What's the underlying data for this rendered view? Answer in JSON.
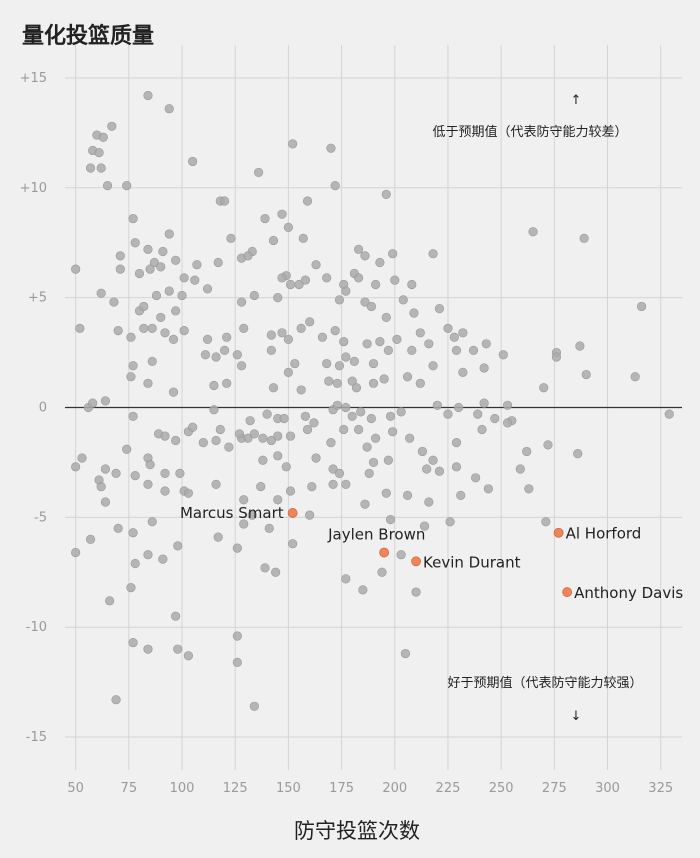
{
  "chart_data": {
    "type": "scatter",
    "title": "量化投篮质量",
    "xlabel": "防守投篮次数",
    "ylabel": "",
    "xlim": [
      45,
      335
    ],
    "ylim": [
      -16.5,
      16.5
    ],
    "x_ticks": [
      50,
      75,
      100,
      125,
      150,
      175,
      200,
      225,
      250,
      275,
      300,
      325
    ],
    "y_ticks": [
      15,
      10,
      5,
      0,
      -5,
      -10,
      -15
    ],
    "y_tick_labels": [
      "+15",
      "+10",
      "+5",
      "0",
      "-5",
      "-10",
      "-15"
    ],
    "grid": true,
    "annotations": {
      "above": "低于预期值（代表防守能力较差）",
      "below": "好于预期值（代表防守能力较强）"
    },
    "colors": {
      "point": "#aaaaaa",
      "highlight": "#f0855a",
      "zero_line": "#333333"
    },
    "highlighted": [
      {
        "name": "Marcus Smart",
        "x": 152,
        "y": -4.8,
        "label_side": "left"
      },
      {
        "name": "Jaylen Brown",
        "x": 195,
        "y": -6.6,
        "label_side": "above"
      },
      {
        "name": "Kevin Durant",
        "x": 210,
        "y": -7.0,
        "label_side": "right"
      },
      {
        "name": "Al Horford",
        "x": 277,
        "y": -5.7,
        "label_side": "right"
      },
      {
        "name": "Anthony Davis",
        "x": 281,
        "y": -8.4,
        "label_side": "right"
      }
    ],
    "points": [
      [
        84,
        14.2
      ],
      [
        94,
        13.6
      ],
      [
        67,
        12.8
      ],
      [
        60,
        12.4
      ],
      [
        63,
        12.3
      ],
      [
        152,
        12.0
      ],
      [
        170,
        11.8
      ],
      [
        58,
        11.7
      ],
      [
        61,
        11.6
      ],
      [
        57,
        10.9
      ],
      [
        62,
        10.9
      ],
      [
        105,
        11.2
      ],
      [
        136,
        10.7
      ],
      [
        65,
        10.1
      ],
      [
        74,
        10.1
      ],
      [
        172,
        10.1
      ],
      [
        196,
        9.7
      ],
      [
        118,
        9.4
      ],
      [
        120,
        9.4
      ],
      [
        159,
        9.4
      ],
      [
        77,
        8.6
      ],
      [
        139,
        8.6
      ],
      [
        147,
        8.8
      ],
      [
        150,
        8.2
      ],
      [
        94,
        7.9
      ],
      [
        123,
        7.7
      ],
      [
        157,
        7.7
      ],
      [
        265,
        8.0
      ],
      [
        289,
        7.7
      ],
      [
        78,
        7.5
      ],
      [
        84,
        7.2
      ],
      [
        91,
        7.1
      ],
      [
        71,
        6.9
      ],
      [
        87,
        6.6
      ],
      [
        97,
        6.7
      ],
      [
        107,
        6.5
      ],
      [
        128,
        6.8
      ],
      [
        133,
        7.1
      ],
      [
        149,
        6.0
      ],
      [
        143,
        7.6
      ],
      [
        183,
        7.2
      ],
      [
        186,
        6.9
      ],
      [
        193,
        6.6
      ],
      [
        199,
        7.0
      ],
      [
        218,
        7.0
      ],
      [
        50,
        6.3
      ],
      [
        71,
        6.3
      ],
      [
        85,
        6.3
      ],
      [
        90,
        6.4
      ],
      [
        117,
        6.6
      ],
      [
        131,
        6.9
      ],
      [
        163,
        6.5
      ],
      [
        80,
        6.1
      ],
      [
        112,
        5.4
      ],
      [
        101,
        5.9
      ],
      [
        106,
        5.8
      ],
      [
        147,
        5.9
      ],
      [
        151,
        5.6
      ],
      [
        155,
        5.6
      ],
      [
        158,
        5.8
      ],
      [
        168,
        5.9
      ],
      [
        181,
        6.1
      ],
      [
        183,
        5.9
      ],
      [
        191,
        5.6
      ],
      [
        176,
        5.6
      ],
      [
        200,
        5.8
      ],
      [
        208,
        5.6
      ],
      [
        62,
        5.2
      ],
      [
        68,
        4.8
      ],
      [
        80,
        4.4
      ],
      [
        88,
        5.1
      ],
      [
        94,
        5.3
      ],
      [
        82,
        4.6
      ],
      [
        90,
        4.1
      ],
      [
        97,
        4.4
      ],
      [
        100,
        5.1
      ],
      [
        128,
        4.8
      ],
      [
        134,
        5.1
      ],
      [
        145,
        5.0
      ],
      [
        174,
        4.9
      ],
      [
        177,
        5.3
      ],
      [
        186,
        4.8
      ],
      [
        189,
        4.6
      ],
      [
        196,
        4.1
      ],
      [
        204,
        4.9
      ],
      [
        209,
        4.3
      ],
      [
        221,
        4.5
      ],
      [
        316,
        4.6
      ],
      [
        52,
        3.6
      ],
      [
        70,
        3.5
      ],
      [
        76,
        3.2
      ],
      [
        82,
        3.6
      ],
      [
        86,
        3.6
      ],
      [
        92,
        3.4
      ],
      [
        96,
        3.1
      ],
      [
        101,
        3.5
      ],
      [
        112,
        3.1
      ],
      [
        121,
        3.2
      ],
      [
        129,
        3.6
      ],
      [
        142,
        3.3
      ],
      [
        147,
        3.4
      ],
      [
        150,
        3.1
      ],
      [
        156,
        3.6
      ],
      [
        160,
        3.9
      ],
      [
        166,
        3.2
      ],
      [
        172,
        3.5
      ],
      [
        176,
        3.0
      ],
      [
        187,
        2.9
      ],
      [
        193,
        3.0
      ],
      [
        201,
        3.1
      ],
      [
        212,
        3.4
      ],
      [
        225,
        3.6
      ],
      [
        228,
        3.2
      ],
      [
        232,
        3.4
      ],
      [
        243,
        2.9
      ],
      [
        120,
        2.6
      ],
      [
        126,
        2.4
      ],
      [
        142,
        2.6
      ],
      [
        153,
        2.0
      ],
      [
        177,
        2.3
      ],
      [
        181,
        2.1
      ],
      [
        190,
        2.0
      ],
      [
        197,
        2.6
      ],
      [
        208,
        2.6
      ],
      [
        216,
        2.9
      ],
      [
        229,
        2.6
      ],
      [
        237,
        2.6
      ],
      [
        77,
        1.9
      ],
      [
        86,
        2.1
      ],
      [
        111,
        2.4
      ],
      [
        116,
        2.3
      ],
      [
        128,
        1.9
      ],
      [
        150,
        1.6
      ],
      [
        168,
        2.0
      ],
      [
        174,
        1.9
      ],
      [
        180,
        1.2
      ],
      [
        190,
        1.1
      ],
      [
        218,
        1.9
      ],
      [
        232,
        1.6
      ],
      [
        242,
        1.8
      ],
      [
        251,
        2.4
      ],
      [
        276,
        2.5
      ],
      [
        276,
        2.3
      ],
      [
        287,
        2.8
      ],
      [
        313,
        1.4
      ],
      [
        290,
        1.5
      ],
      [
        76,
        1.4
      ],
      [
        84,
        1.1
      ],
      [
        96,
        0.7
      ],
      [
        115,
        1.0
      ],
      [
        121,
        1.1
      ],
      [
        143,
        0.9
      ],
      [
        156,
        0.8
      ],
      [
        169,
        1.2
      ],
      [
        173,
        1.1
      ],
      [
        182,
        0.9
      ],
      [
        195,
        1.3
      ],
      [
        206,
        1.4
      ],
      [
        212,
        1.1
      ],
      [
        56,
        0.0
      ],
      [
        58,
        0.2
      ],
      [
        64,
        0.3
      ],
      [
        77,
        -0.4
      ],
      [
        115,
        -0.1
      ],
      [
        132,
        -0.6
      ],
      [
        140,
        -0.3
      ],
      [
        145,
        -0.5
      ],
      [
        148,
        -0.5
      ],
      [
        158,
        -0.4
      ],
      [
        162,
        -0.7
      ],
      [
        171,
        -0.1
      ],
      [
        173,
        0.1
      ],
      [
        177,
        0.0
      ],
      [
        180,
        -0.4
      ],
      [
        184,
        -0.2
      ],
      [
        189,
        -0.5
      ],
      [
        198,
        -0.4
      ],
      [
        203,
        -0.2
      ],
      [
        220,
        0.1
      ],
      [
        225,
        -0.3
      ],
      [
        230,
        0.0
      ],
      [
        239,
        -0.3
      ],
      [
        242,
        0.2
      ],
      [
        247,
        -0.5
      ],
      [
        253,
        0.1
      ],
      [
        255,
        -0.6
      ],
      [
        270,
        0.9
      ],
      [
        329,
        -0.3
      ],
      [
        53,
        -2.3
      ],
      [
        50,
        -2.7
      ],
      [
        61,
        -3.3
      ],
      [
        69,
        -3.0
      ],
      [
        74,
        -1.9
      ],
      [
        64,
        -2.8
      ],
      [
        78,
        -3.1
      ],
      [
        84,
        -2.3
      ],
      [
        85,
        -2.6
      ],
      [
        89,
        -1.2
      ],
      [
        92,
        -1.3
      ],
      [
        97,
        -1.5
      ],
      [
        103,
        -1.1
      ],
      [
        105,
        -0.9
      ],
      [
        118,
        -1.0
      ],
      [
        116,
        -1.5
      ],
      [
        128,
        -1.4
      ],
      [
        131,
        -1.4
      ],
      [
        134,
        -1.2
      ],
      [
        138,
        -1.4
      ],
      [
        142,
        -1.5
      ],
      [
        145,
        -1.3
      ],
      [
        151,
        -1.3
      ],
      [
        159,
        -1.0
      ],
      [
        170,
        -1.6
      ],
      [
        176,
        -1.0
      ],
      [
        183,
        -1.0
      ],
      [
        187,
        -1.8
      ],
      [
        191,
        -1.4
      ],
      [
        199,
        -1.1
      ],
      [
        207,
        -1.4
      ],
      [
        213,
        -2.0
      ],
      [
        218,
        -2.4
      ],
      [
        229,
        -1.6
      ],
      [
        241,
        -1.0
      ],
      [
        253,
        -0.7
      ],
      [
        262,
        -2.0
      ],
      [
        272,
        -1.7
      ],
      [
        286,
        -2.1
      ],
      [
        92,
        -3.0
      ],
      [
        99,
        -3.0
      ],
      [
        110,
        -1.6
      ],
      [
        122,
        -1.8
      ],
      [
        127,
        -1.2
      ],
      [
        138,
        -2.4
      ],
      [
        145,
        -2.2
      ],
      [
        149,
        -2.7
      ],
      [
        163,
        -2.3
      ],
      [
        171,
        -2.8
      ],
      [
        174,
        -3.0
      ],
      [
        188,
        -3.0
      ],
      [
        190,
        -2.5
      ],
      [
        197,
        -2.4
      ],
      [
        215,
        -2.8
      ],
      [
        221,
        -2.9
      ],
      [
        229,
        -2.7
      ],
      [
        238,
        -3.2
      ],
      [
        259,
        -2.8
      ],
      [
        84,
        -3.5
      ],
      [
        92,
        -3.8
      ],
      [
        101,
        -3.8
      ],
      [
        103,
        -3.9
      ],
      [
        116,
        -3.5
      ],
      [
        129,
        -4.2
      ],
      [
        137,
        -3.6
      ],
      [
        145,
        -4.2
      ],
      [
        151,
        -3.8
      ],
      [
        161,
        -3.6
      ],
      [
        171,
        -3.5
      ],
      [
        177,
        -3.5
      ],
      [
        196,
        -3.9
      ],
      [
        206,
        -4.0
      ],
      [
        216,
        -4.3
      ],
      [
        231,
        -4.0
      ],
      [
        244,
        -3.7
      ],
      [
        263,
        -3.7
      ],
      [
        62,
        -3.6
      ],
      [
        64,
        -4.3
      ],
      [
        70,
        -5.5
      ],
      [
        77,
        -5.7
      ],
      [
        86,
        -5.2
      ],
      [
        98,
        -6.3
      ],
      [
        129,
        -5.3
      ],
      [
        133,
        -4.9
      ],
      [
        141,
        -5.5
      ],
      [
        152,
        -6.2
      ],
      [
        160,
        -4.9
      ],
      [
        186,
        -4.4
      ],
      [
        198,
        -5.1
      ],
      [
        214,
        -5.4
      ],
      [
        226,
        -5.2
      ],
      [
        271,
        -5.2
      ],
      [
        57,
        -6.0
      ],
      [
        66,
        -8.8
      ],
      [
        78,
        -7.1
      ],
      [
        84,
        -6.7
      ],
      [
        91,
        -6.9
      ],
      [
        117,
        -5.9
      ],
      [
        126,
        -6.4
      ],
      [
        139,
        -7.3
      ],
      [
        144,
        -7.5
      ],
      [
        177,
        -7.8
      ],
      [
        185,
        -8.3
      ],
      [
        194,
        -7.5
      ],
      [
        203,
        -6.7
      ],
      [
        210,
        -8.4
      ],
      [
        76,
        -8.2
      ],
      [
        77,
        -10.7
      ],
      [
        84,
        -11.0
      ],
      [
        97,
        -9.5
      ],
      [
        98,
        -11.0
      ],
      [
        103,
        -11.3
      ],
      [
        126,
        -10.4
      ],
      [
        126,
        -11.6
      ],
      [
        134,
        -13.6
      ],
      [
        69,
        -13.3
      ],
      [
        50,
        -6.6
      ],
      [
        205,
        -11.2
      ]
    ]
  }
}
